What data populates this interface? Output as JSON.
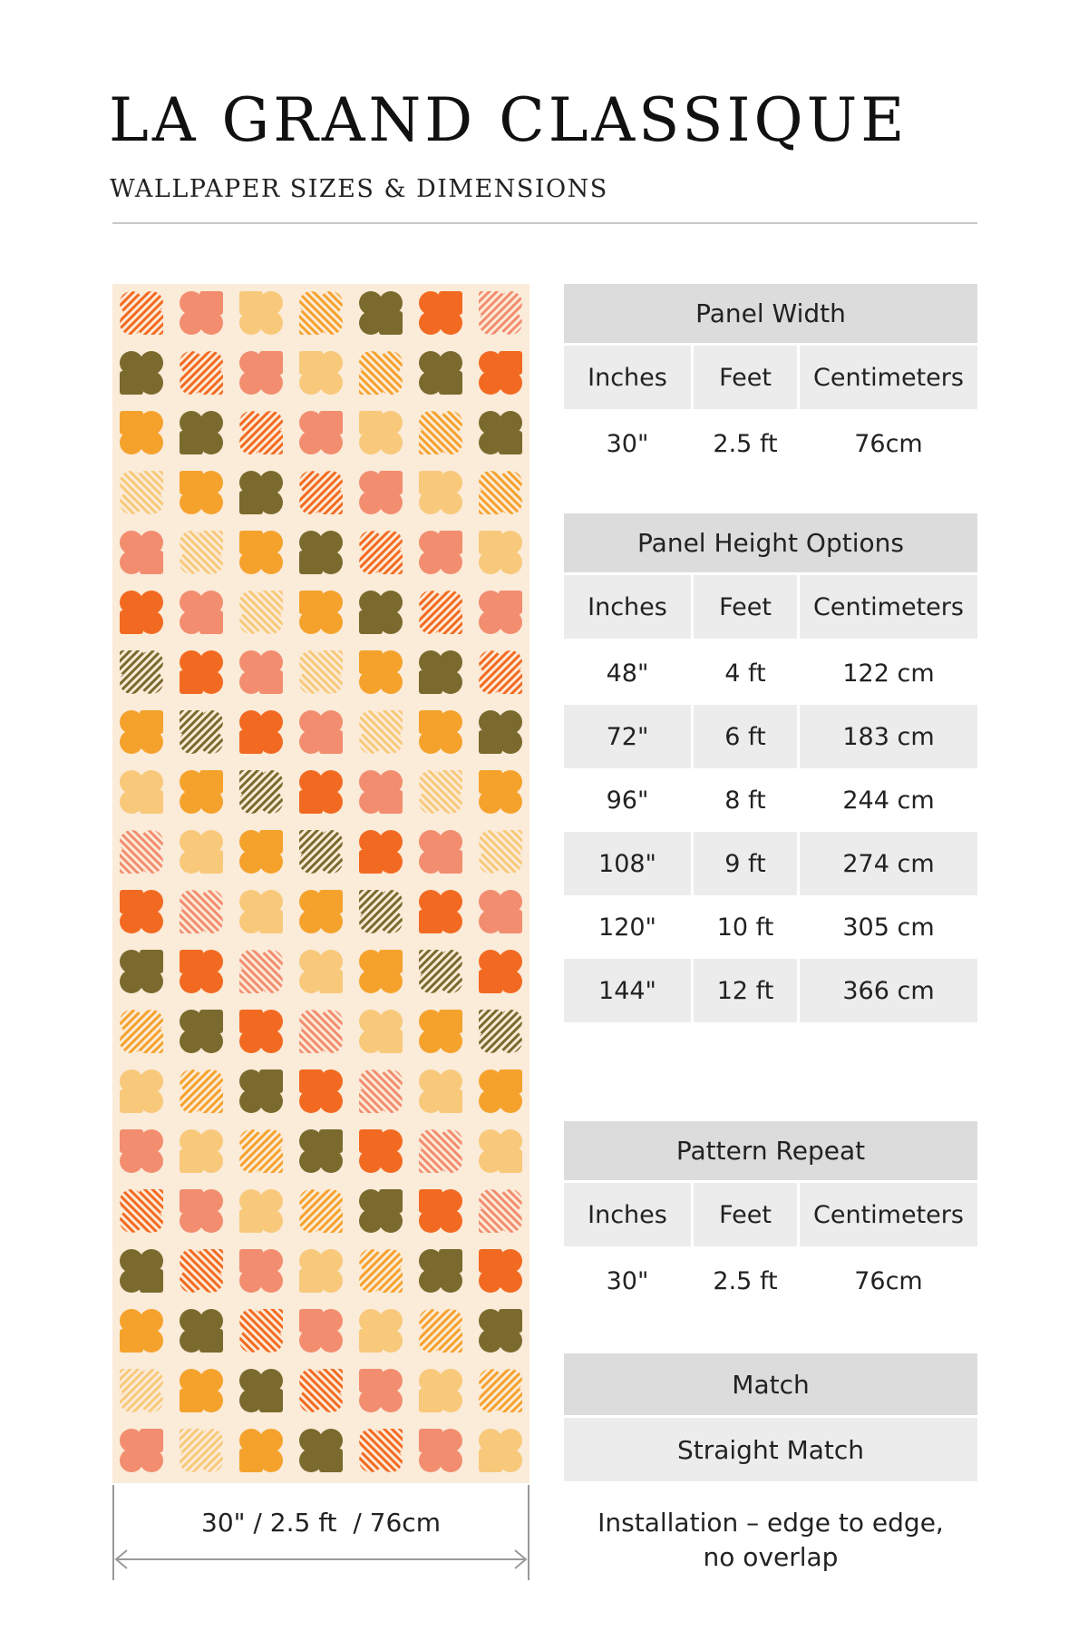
{
  "header": {
    "title": "LA GRAND CLASSIQUE",
    "subtitle": "WALLPAPER SIZES & DIMENSIONS"
  },
  "swatch": {
    "dimension_label": "30\" / 2.5 ft  / 76cm",
    "pattern_colors": [
      "#f26a21",
      "#f5a22c",
      "#f28d6f",
      "#7a6a2d",
      "#f8c97a"
    ],
    "background": "#fbebd9"
  },
  "panel_width": {
    "title": "Panel Width",
    "columns": [
      "Inches",
      "Feet",
      "Centimeters"
    ],
    "rows": [
      [
        "30\"",
        "2.5 ft",
        "76cm"
      ]
    ]
  },
  "panel_height": {
    "title": "Panel Height Options",
    "columns": [
      "Inches",
      "Feet",
      "Centimeters"
    ],
    "rows": [
      [
        "48\"",
        "4 ft",
        "122 cm"
      ],
      [
        "72\"",
        "6 ft",
        "183 cm"
      ],
      [
        "96\"",
        "8 ft",
        "244 cm"
      ],
      [
        "108\"",
        "9 ft",
        "274 cm"
      ],
      [
        "120\"",
        "10 ft",
        "305 cm"
      ],
      [
        "144\"",
        "12 ft",
        "366 cm"
      ]
    ]
  },
  "pattern_repeat": {
    "title": "Pattern Repeat",
    "columns": [
      "Inches",
      "Feet",
      "Centimeters"
    ],
    "rows": [
      [
        "30\"",
        "2.5 ft",
        "76cm"
      ]
    ]
  },
  "match": {
    "title": "Match",
    "value": "Straight Match",
    "installation_line1": "Installation – edge to edge,",
    "installation_line2": "no overlap"
  }
}
